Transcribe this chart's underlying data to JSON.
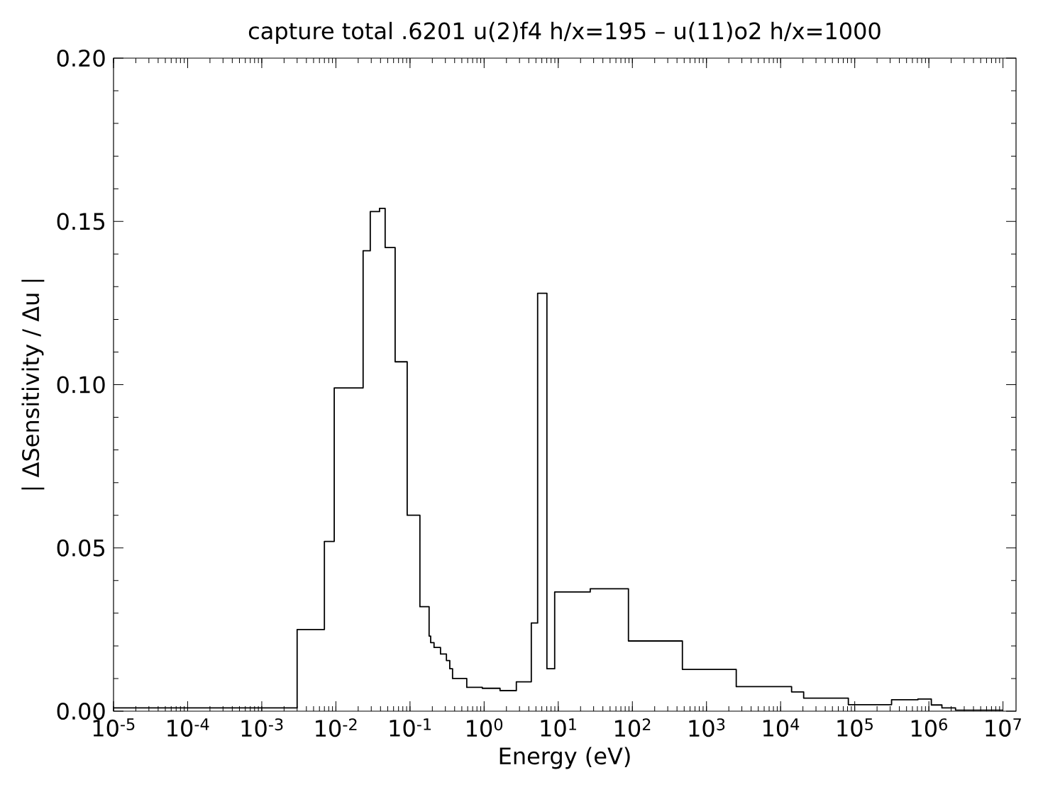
{
  "chart_data": {
    "type": "histogram",
    "title": "capture total  .6201 u(2)f4 h/x=195   –   u(11)o2 h/x=1000",
    "xlabel": "Energy (eV)",
    "ylabel": "| ΔSensitivity / Δu |",
    "color": "#000000",
    "log": "x",
    "bins": [
      1e-05,
      0.003,
      0.007,
      0.0095,
      0.0233,
      0.0291,
      0.0388,
      0.0462,
      0.063,
      0.0916,
      0.136,
      0.181,
      0.19,
      0.211,
      0.258,
      0.31,
      0.344,
      0.375,
      0.583,
      0.946,
      1.64,
      2.72,
      4.33,
      5.27,
      7.03,
      8.95,
      27,
      88.5,
      473,
      2520,
      14060,
      20460,
      82000,
      314000,
      711000,
      1080000,
      1500000,
      2290000,
      10000000
    ],
    "values": [
      0.001,
      0.025,
      0.052,
      0.099,
      0.141,
      0.153,
      0.154,
      0.142,
      0.107,
      0.06,
      0.032,
      0.023,
      0.021,
      0.0195,
      0.0175,
      0.0155,
      0.013,
      0.01,
      0.0073,
      0.007,
      0.0063,
      0.009,
      0.027,
      0.128,
      0.013,
      0.0365,
      0.0375,
      0.0215,
      0.0128,
      0.0075,
      0.0059,
      0.004,
      0.002,
      0.0035,
      0.0037,
      0.0019,
      0.001,
      0.0003
    ],
    "xlim": [
      1e-05,
      15000000
    ],
    "ylim": [
      0,
      0.2
    ],
    "xticks": [
      {
        "value": 1e-05,
        "label": "10$^{-5}$"
      },
      {
        "value": 0.0001,
        "label": "10$^{-4}$"
      },
      {
        "value": 0.001,
        "label": "10$^{-3}$"
      },
      {
        "value": 0.01,
        "label": "10$^{-2}$"
      },
      {
        "value": 0.1,
        "label": "10$^{-1}$"
      },
      {
        "value": 1,
        "label": "10$^{0}$"
      },
      {
        "value": 10,
        "label": "10$^{1}$"
      },
      {
        "value": 100,
        "label": "10$^{2}$"
      },
      {
        "value": 1000,
        "label": "10$^{3}$"
      },
      {
        "value": 10000,
        "label": "10$^{4}$"
      },
      {
        "value": 100000,
        "label": "10$^{5}$"
      },
      {
        "value": 1000000,
        "label": "10$^{6}$"
      },
      {
        "value": 10000000,
        "label": "10$^{7}$"
      }
    ],
    "yticks": [
      {
        "value": 0,
        "label": "0.00"
      },
      {
        "value": 0.05,
        "label": "0.05"
      },
      {
        "value": 0.1,
        "label": "0.10"
      },
      {
        "value": 0.15,
        "label": "0.15"
      },
      {
        "value": 0.2,
        "label": "0.20"
      }
    ]
  }
}
